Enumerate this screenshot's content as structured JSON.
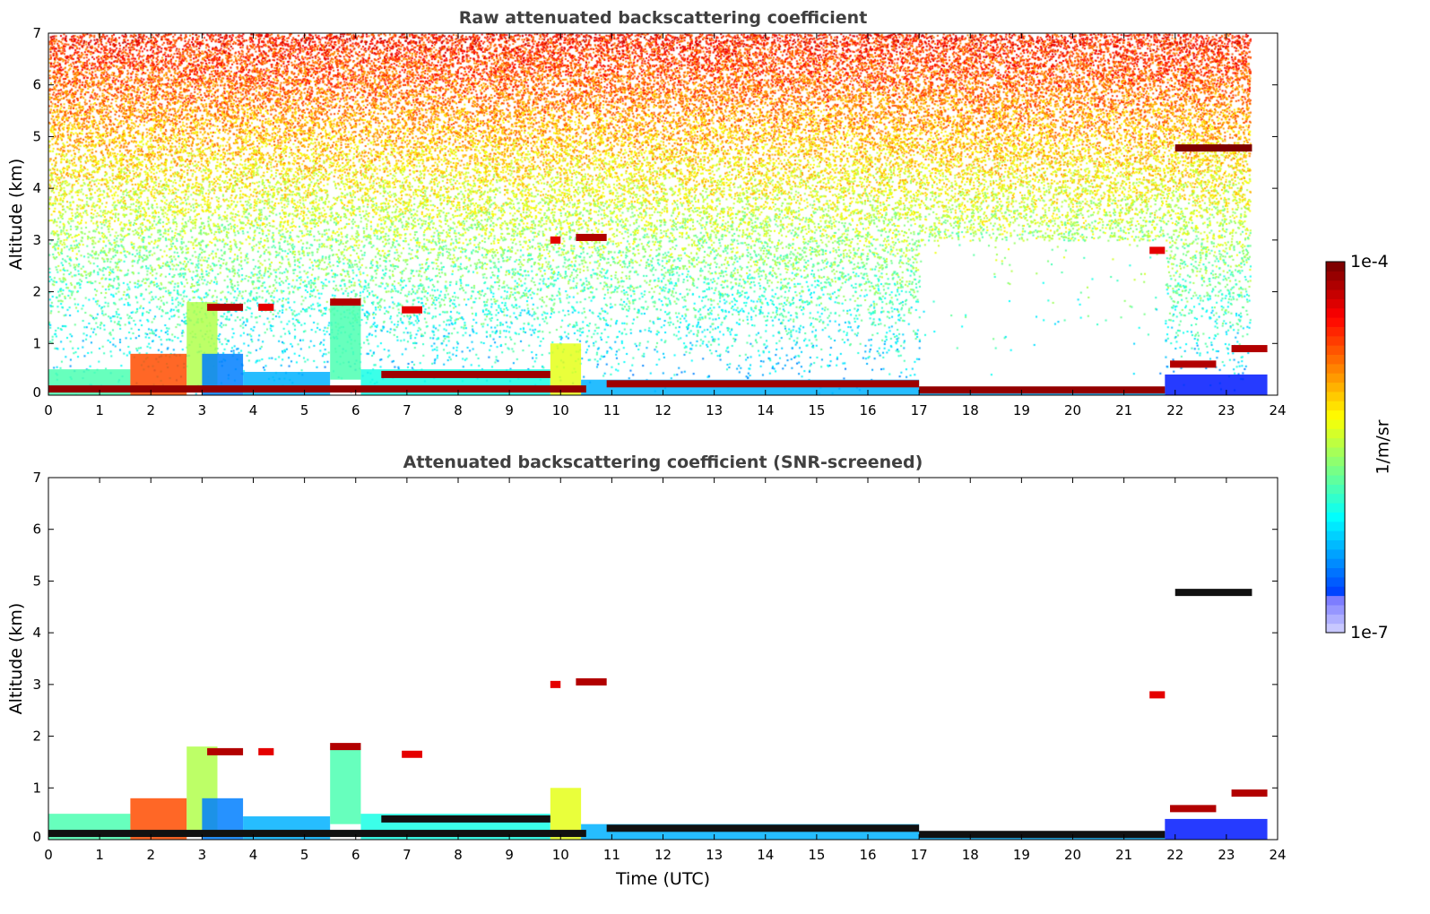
{
  "chart_data": [
    {
      "type": "heatmap",
      "title": "Raw attenuated backscattering coefficient",
      "xlabel": "",
      "ylabel": "Altitude (km)",
      "xlim": [
        0,
        24
      ],
      "ylim": [
        0,
        7
      ],
      "xticks": [
        "0",
        "1",
        "2",
        "3",
        "4",
        "5",
        "6",
        "7",
        "8",
        "9",
        "10",
        "11",
        "12",
        "13",
        "14",
        "15",
        "16",
        "17",
        "18",
        "19",
        "20",
        "21",
        "22",
        "23",
        "24"
      ],
      "yticks": [
        "0",
        "1",
        "2",
        "3",
        "4",
        "5",
        "6",
        "7"
      ],
      "noise": true
    },
    {
      "type": "heatmap",
      "title": "Attenuated backscattering coefficient (SNR-screened)",
      "xlabel": "Time (UTC)",
      "ylabel": "Altitude (km)",
      "xlim": [
        0,
        24
      ],
      "ylim": [
        0,
        7
      ],
      "xticks": [
        "0",
        "1",
        "2",
        "3",
        "4",
        "5",
        "6",
        "7",
        "8",
        "9",
        "10",
        "11",
        "12",
        "13",
        "14",
        "15",
        "16",
        "17",
        "18",
        "19",
        "20",
        "21",
        "22",
        "23",
        "24"
      ],
      "yticks": [
        "0",
        "1",
        "2",
        "3",
        "4",
        "5",
        "6",
        "7"
      ],
      "noise": false
    }
  ],
  "layers": [
    {
      "t0": 0,
      "t1": 1.6,
      "bottom": 0,
      "top": 0.5,
      "level": 0.45
    },
    {
      "t0": 1.6,
      "t1": 2.7,
      "bottom": 0,
      "top": 0.8,
      "level": 0.8
    },
    {
      "t0": 2.7,
      "t1": 3.3,
      "bottom": 0.1,
      "top": 1.8,
      "level": 0.55
    },
    {
      "t0": 3.0,
      "t1": 3.8,
      "bottom": 0,
      "top": 0.8,
      "level": 0.25
    },
    {
      "t0": 3.8,
      "t1": 5.5,
      "bottom": 0,
      "top": 0.45,
      "level": 0.3
    },
    {
      "t0": 5.5,
      "t1": 6.1,
      "bottom": 0.3,
      "top": 1.8,
      "level": 0.45
    },
    {
      "t0": 6.1,
      "t1": 9.8,
      "bottom": 0,
      "top": 0.5,
      "level": 0.4
    },
    {
      "t0": 9.8,
      "t1": 10.4,
      "bottom": 0,
      "top": 1.0,
      "level": 0.6
    },
    {
      "t0": 10.4,
      "t1": 17,
      "bottom": 0,
      "top": 0.3,
      "level": 0.3
    },
    {
      "t0": 17,
      "t1": 21.8,
      "bottom": 0,
      "top": 0.15,
      "level": 0.3
    },
    {
      "t0": 21.8,
      "t1": 23.8,
      "bottom": 0,
      "top": 0.4,
      "level": 0.15
    }
  ],
  "clouds": [
    {
      "t0": 3.1,
      "t1": 3.8,
      "alt": 1.7,
      "level": 0.95
    },
    {
      "t0": 4.1,
      "t1": 4.4,
      "alt": 1.7,
      "level": 0.9
    },
    {
      "t0": 5.5,
      "t1": 6.1,
      "alt": 1.8,
      "level": 0.95
    },
    {
      "t0": 6.9,
      "t1": 7.3,
      "alt": 1.65,
      "level": 0.9
    },
    {
      "t0": 0,
      "t1": 10.5,
      "alt": 0.12,
      "level": 0.98
    },
    {
      "t0": 6.5,
      "t1": 9.8,
      "alt": 0.4,
      "level": 0.97
    },
    {
      "t0": 9.8,
      "t1": 10.0,
      "alt": 3.0,
      "level": 0.9
    },
    {
      "t0": 10.3,
      "t1": 10.9,
      "alt": 3.05,
      "level": 0.95
    },
    {
      "t0": 10.9,
      "t1": 17,
      "alt": 0.22,
      "level": 0.97
    },
    {
      "t0": 17,
      "t1": 21.8,
      "alt": 0.1,
      "level": 0.98
    },
    {
      "t0": 21.5,
      "t1": 21.8,
      "alt": 2.8,
      "level": 0.9
    },
    {
      "t0": 21.9,
      "t1": 22.8,
      "alt": 0.6,
      "level": 0.95
    },
    {
      "t0": 22.0,
      "t1": 23.5,
      "alt": 4.78,
      "level": 1.0
    },
    {
      "t0": 23.1,
      "t1": 23.8,
      "alt": 0.9,
      "level": 0.95
    }
  ],
  "colorbar": {
    "max_label": "1e-4",
    "min_label": "1e-7",
    "unit_label": "1/m/sr"
  }
}
